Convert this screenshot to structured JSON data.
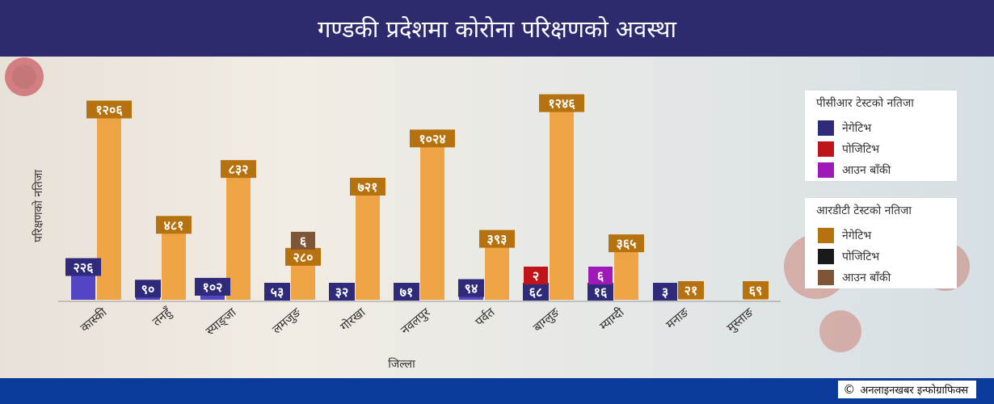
{
  "title": "गण्डकी प्रदेशमा कोरोना परिक्षणको अवस्था",
  "credit": {
    "symbol": "©",
    "text": "अनलाइनखबर इन्फोग्राफिक्स"
  },
  "legends": {
    "pcr": {
      "title": "पीसीआर टेस्टको नतिजा",
      "items": [
        {
          "label": "नेगेटिभ",
          "color": "#2f2b7a"
        },
        {
          "label": "पोजिटिभ",
          "color": "#c0141b"
        },
        {
          "label": "आउन बाँकी",
          "color": "#9e19b8"
        }
      ]
    },
    "rdt": {
      "title": "आरडीटी टेस्टको नतिजा",
      "items": [
        {
          "label": "नेगेटिभ",
          "color": "#b5720e"
        },
        {
          "label": "पोजिटिभ",
          "color": "#1a1a1a"
        },
        {
          "label": "आउन बाँकी",
          "color": "#7e5536"
        }
      ]
    }
  },
  "chart_data": {
    "type": "bar",
    "xlabel": "जिल्ला",
    "ylabel": "परिक्षणको नतिजा",
    "ylim": [
      0,
      1300
    ],
    "grid": false,
    "legend": "right",
    "colors": {
      "pcr_bar": "#5446c2",
      "rdt_bar": "#eea444",
      "pcr_negative_label": "#2f2b7a",
      "rdt_negative_label": "#b5720e",
      "pcr_positive": "#c0141b",
      "pcr_pending": "#9e19b8",
      "rdt_pending": "#7e5536"
    },
    "categories": [
      "कास्की",
      "तनहुँ",
      "स्याङ्जा",
      "लमजुङ",
      "गोरखा",
      "नवलपुर",
      "पर्वत",
      "बाग्लुङ",
      "म्याग्दी",
      "मनाङ",
      "मुस्ताङ"
    ],
    "pcr": {
      "negative": [
        226,
        90,
        102,
        53,
        32,
        71,
        94,
        68,
        16,
        3,
        0
      ],
      "negative_labels": [
        "२२६",
        "९०",
        "१०२",
        "५३",
        "३२",
        "७१",
        "९४",
        "६८",
        "१६",
        "३",
        ""
      ],
      "positive": [
        0,
        0,
        0,
        0,
        0,
        0,
        0,
        2,
        0,
        0,
        0
      ],
      "positive_labels": [
        "",
        "",
        "",
        "",
        "",
        "",
        "",
        "२",
        "",
        "",
        ""
      ],
      "pending": [
        0,
        0,
        0,
        0,
        0,
        0,
        0,
        0,
        6,
        0,
        0
      ],
      "pending_labels": [
        "",
        "",
        "",
        "",
        "",
        "",
        "",
        "",
        "६",
        "",
        ""
      ]
    },
    "rdt": {
      "negative": [
        1206,
        481,
        832,
        280,
        721,
        1024,
        393,
        1246,
        365,
        21,
        69
      ],
      "negative_labels": [
        "१२०६",
        "४८१",
        "८३२",
        "२८०",
        "७२१",
        "१०२४",
        "३९३",
        "१२४६",
        "३६५",
        "२१",
        "६९"
      ],
      "pending": [
        0,
        0,
        0,
        6,
        0,
        0,
        0,
        0,
        0,
        0,
        0
      ],
      "pending_labels": [
        "",
        "",
        "",
        "६",
        "",
        "",
        "",
        "",
        "",
        "",
        ""
      ]
    }
  }
}
